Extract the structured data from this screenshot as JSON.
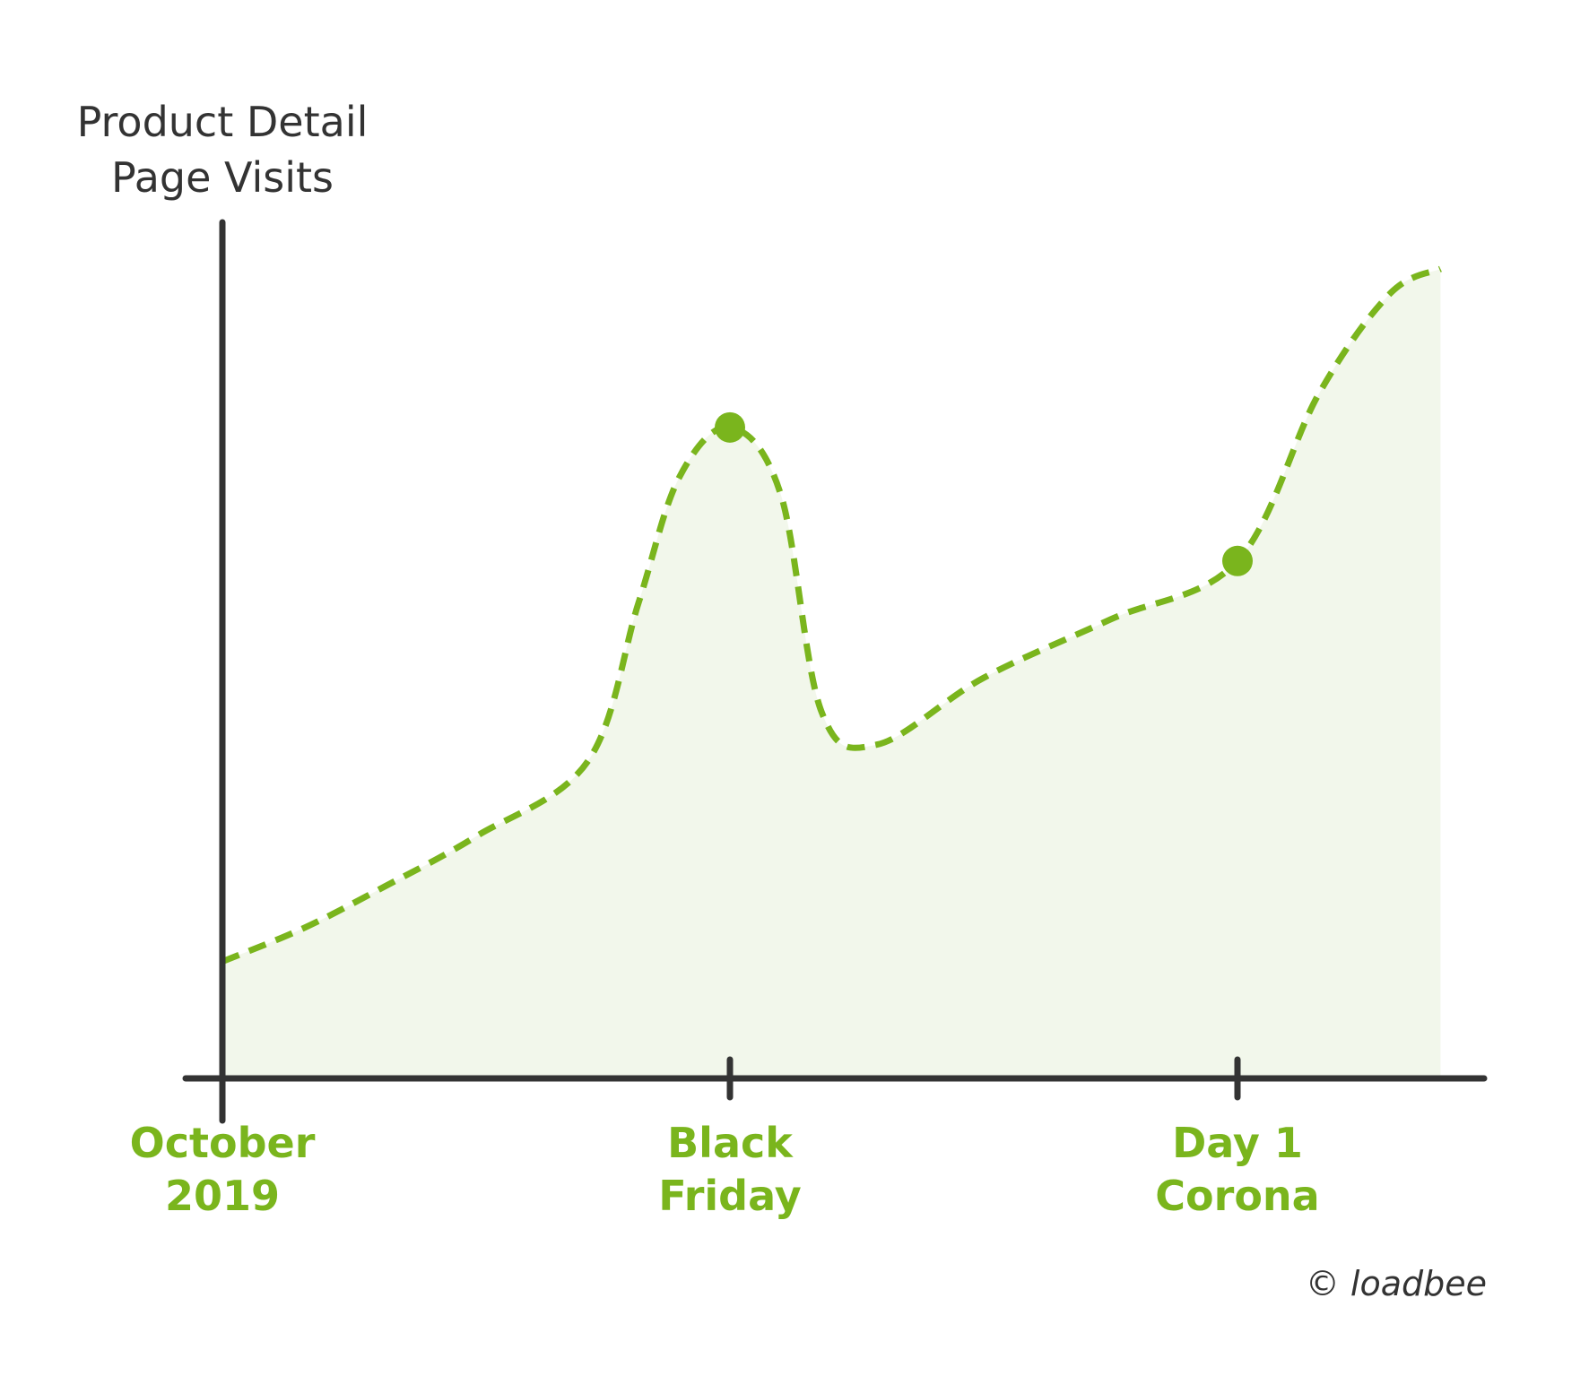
{
  "colors": {
    "accent": "#7ab51d",
    "area_fill": "#f2f7eb",
    "axis": "#333333",
    "text": "#333333"
  },
  "chart_data": {
    "type": "area",
    "ylabel_lines": [
      "Product Detail",
      "Page Visits"
    ],
    "ylim": [
      0,
      100
    ],
    "xlim": [
      0,
      2.4
    ],
    "xticks": [
      {
        "x": 0,
        "label_lines": [
          "October",
          "2019"
        ]
      },
      {
        "x": 1,
        "label_lines": [
          "Black",
          "Friday"
        ]
      },
      {
        "x": 2,
        "label_lines": [
          "Day 1",
          "Corona"
        ]
      }
    ],
    "series": [
      {
        "style": "dashed",
        "values": [
          {
            "x": 0.0,
            "y": 14
          },
          {
            "x": 0.16,
            "y": 18
          },
          {
            "x": 0.32,
            "y": 23
          },
          {
            "x": 0.5,
            "y": 29
          },
          {
            "x": 0.72,
            "y": 38
          },
          {
            "x": 0.82,
            "y": 57
          },
          {
            "x": 0.9,
            "y": 72
          },
          {
            "x": 1.0,
            "y": 78
          },
          {
            "x": 1.1,
            "y": 70
          },
          {
            "x": 1.18,
            "y": 44
          },
          {
            "x": 1.29,
            "y": 40
          },
          {
            "x": 1.5,
            "y": 48
          },
          {
            "x": 1.75,
            "y": 55
          },
          {
            "x": 2.0,
            "y": 62
          },
          {
            "x": 2.16,
            "y": 82
          },
          {
            "x": 2.3,
            "y": 94
          },
          {
            "x": 2.4,
            "y": 97
          }
        ]
      }
    ],
    "highlighted_points": [
      {
        "x": 1.0,
        "y": 78
      },
      {
        "x": 2.0,
        "y": 62
      }
    ],
    "grid": false,
    "legend": "none"
  },
  "credit": "© loadbee"
}
